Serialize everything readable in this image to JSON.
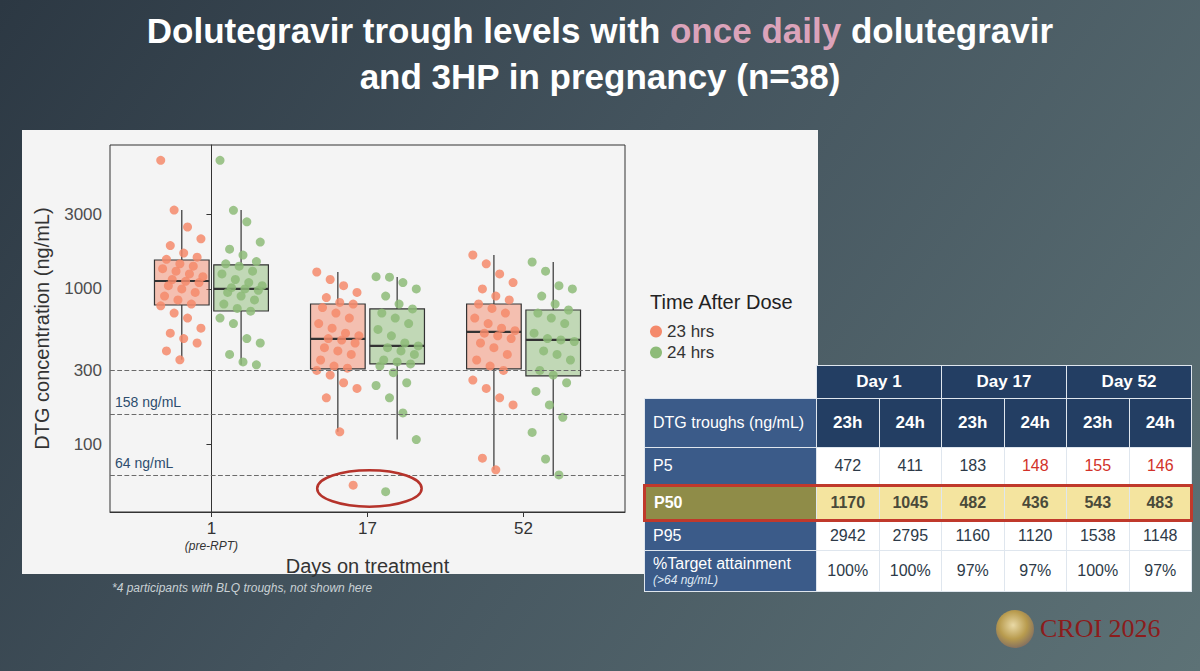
{
  "title": [
    "Dolutegravir trough levels with once daily dolutegravir",
    "and 3HP in pregnancy (n=38)"
  ],
  "title_highlight": "once daily",
  "chart_data": {
    "type": "boxplot",
    "x_label": "Days on treatment",
    "y_label": "DTG concentration (ng/mL)",
    "categories": [
      "1",
      "17",
      "52"
    ],
    "x_sublabels": [
      "(pre-RPT)",
      null,
      null
    ],
    "log": "y",
    "ylim": [
      37,
      8400
    ],
    "yticks": [
      100,
      300,
      1000,
      3000
    ],
    "grid": false,
    "legend": "right",
    "legend_title": "Time After Dose",
    "marker": "circle",
    "reference_lines": [
      {
        "value": 300
      },
      {
        "value": 158,
        "label": "158 ng/mL"
      },
      {
        "value": 64,
        "label": "64 ng/mL"
      }
    ],
    "series": [
      {
        "name": "23 hrs",
        "color": "#f4896b",
        "boxes": [
          [
            351,
            789,
            1125,
            1535,
            3210
          ],
          [
            121,
            307,
            478,
            801,
            1285
          ],
          [
            69,
            307,
            530,
            801,
            1652
          ]
        ],
        "points": [
          [
            6700,
            3210,
            2500,
            2100,
            1900,
            1700,
            1600,
            1550,
            1450,
            1400,
            1350,
            1300,
            1250,
            1200,
            1150,
            1120,
            1100,
            1050,
            1000,
            950,
            900,
            850,
            800,
            780,
            700,
            650,
            560,
            520,
            480,
            450,
            400,
            351
          ],
          [
            1285,
            1150,
            1050,
            950,
            880,
            820,
            800,
            760,
            700,
            650,
            600,
            560,
            520,
            500,
            480,
            470,
            450,
            420,
            400,
            380,
            350,
            320,
            310,
            300,
            280,
            250,
            230,
            200,
            121,
            55
          ],
          [
            1652,
            1450,
            1250,
            1100,
            1000,
            900,
            850,
            801,
            750,
            700,
            650,
            600,
            560,
            540,
            520,
            500,
            480,
            450,
            420,
            380,
            350,
            320,
            300,
            260,
            230,
            200,
            180,
            82,
            69
          ]
        ]
      },
      {
        "name": "24 hrs",
        "color": "#8dbb78",
        "boxes": [
          [
            326,
            722,
            1000,
            1430,
            3210
          ],
          [
            108,
            330,
            431,
            745,
            1194
          ],
          [
            64,
            277,
            471,
            733,
            1490
          ]
        ],
        "points": [
          [
            6700,
            3200,
            2700,
            2000,
            1800,
            1650,
            1500,
            1450,
            1400,
            1300,
            1250,
            1150,
            1100,
            1050,
            1020,
            1000,
            980,
            950,
            900,
            850,
            800,
            750,
            720,
            650,
            600,
            480,
            450,
            380,
            340,
            326
          ],
          [
            1200,
            1190,
            1100,
            1000,
            900,
            800,
            745,
            700,
            650,
            600,
            550,
            500,
            450,
            431,
            420,
            400,
            380,
            350,
            340,
            330,
            320,
            290,
            250,
            240,
            200,
            160,
            108,
            50
          ],
          [
            1490,
            1300,
            1050,
            1000,
            900,
            800,
            733,
            700,
            650,
            600,
            520,
            480,
            471,
            460,
            400,
            380,
            350,
            300,
            280,
            250,
            220,
            180,
            150,
            120,
            81,
            64
          ]
        ]
      }
    ]
  },
  "footnote": "*4 participants with BLQ troughs, not shown here",
  "table": {
    "header": [
      "Day 1",
      "Day 17",
      "Day 52"
    ],
    "subheader_label": "DTG troughs (ng/mL)",
    "subheaders": [
      "23h",
      "24h",
      "23h",
      "24h",
      "23h",
      "24h"
    ],
    "rows": [
      {
        "label": "P5",
        "cells": [
          "472",
          "411",
          "183",
          {
            "text": "148",
            "color": "red"
          },
          {
            "text": "155",
            "color": "red"
          },
          {
            "text": "146",
            "color": "red"
          }
        ]
      },
      {
        "label": "P50",
        "highlight": true,
        "cells": [
          "1170",
          "1045",
          "482",
          "436",
          "543",
          "483"
        ]
      },
      {
        "label": "P95",
        "cells": [
          "2942",
          "2795",
          "1160",
          "1120",
          "1538",
          "1148"
        ]
      },
      {
        "label": "%Target attainment",
        "note": "(>64 ng/mL)",
        "cells": [
          "100%",
          "100%",
          "97%",
          "97%",
          "100%",
          "97%"
        ]
      }
    ]
  },
  "logo_text": "CROI 2026"
}
